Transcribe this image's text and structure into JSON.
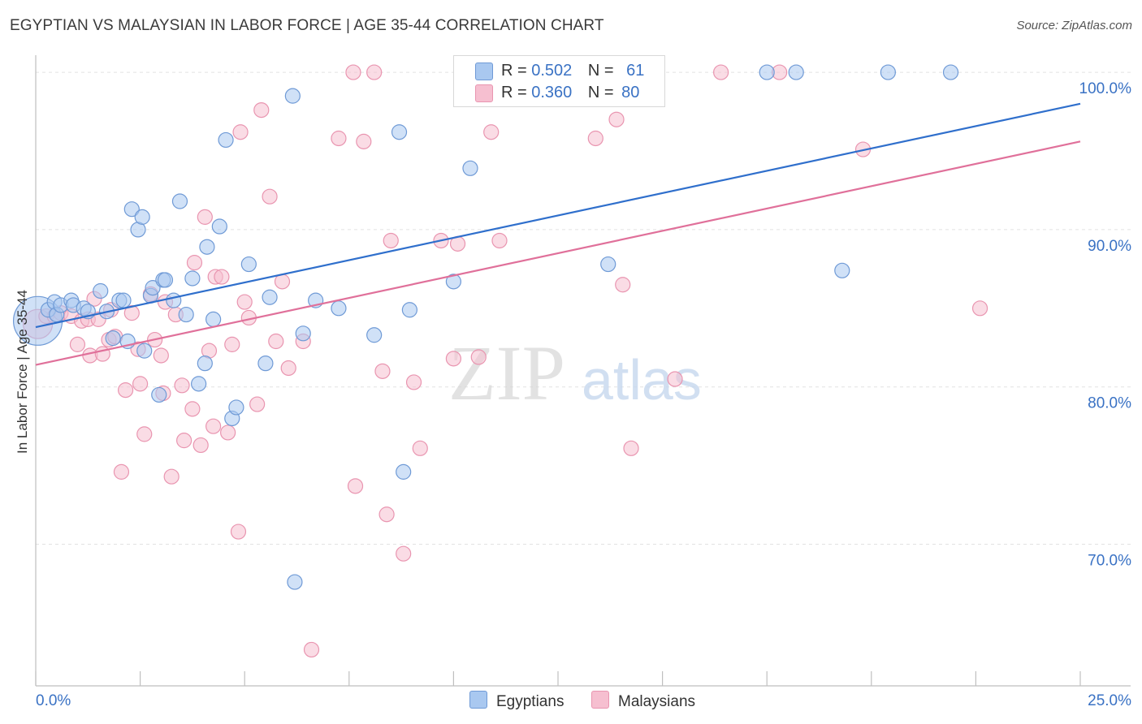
{
  "title": "EGYPTIAN VS MALAYSIAN IN LABOR FORCE | AGE 35-44 CORRELATION CHART",
  "source": "Source: ZipAtlas.com",
  "watermark": {
    "zip": "ZIP",
    "atlas": "atlas"
  },
  "legend": {
    "r_label": "R =",
    "n_label": "N =",
    "rows": [
      {
        "name": "Egyptians",
        "r": "0.502",
        "n": "61"
      },
      {
        "name": "Malaysians",
        "r": "0.360",
        "n": "80"
      }
    ]
  },
  "colors": {
    "egyptians_fill": "#a9c8f0",
    "egyptians_stroke": "#6f9ad6",
    "egyptians_line": "#2f6fcc",
    "malaysians_fill": "#f6bfd0",
    "malaysians_stroke": "#e995b0",
    "malaysians_line": "#e0709a",
    "tick_label": "#3a72c4",
    "grid": "#e2e2e2"
  },
  "chart_data": {
    "type": "scatter",
    "xlabel": "",
    "ylabel": "In Labor Force | Age 35-44",
    "xlim": [
      0,
      25
    ],
    "ylim": [
      61,
      101.5
    ],
    "x_tick_labels": [
      "0.0%",
      "25.0%"
    ],
    "y_ticks": [
      70,
      80,
      90,
      100
    ],
    "y_tick_labels": [
      "70.0%",
      "80.0%",
      "90.0%",
      "100.0%"
    ],
    "grid": true,
    "legend_position": "top-center",
    "series": [
      {
        "name": "Egyptians",
        "trend": {
          "x0": 0,
          "y0": 83.8,
          "x1": 25,
          "y1": 98
        },
        "points": [
          [
            0.05,
            84.2,
            30
          ],
          [
            0.3,
            84.9,
            9
          ],
          [
            0.45,
            85.4,
            9
          ],
          [
            0.5,
            84.6,
            9
          ],
          [
            0.6,
            85.2,
            9
          ],
          [
            0.85,
            85.5,
            9
          ],
          [
            0.9,
            85.2,
            9
          ],
          [
            1.15,
            85.0,
            9
          ],
          [
            1.25,
            84.8,
            9
          ],
          [
            1.55,
            86.1,
            9
          ],
          [
            1.7,
            84.8,
            9
          ],
          [
            1.85,
            83.1,
            9
          ],
          [
            2.0,
            85.5,
            9
          ],
          [
            2.1,
            85.5,
            9
          ],
          [
            2.2,
            82.9,
            9
          ],
          [
            2.3,
            91.3,
            9
          ],
          [
            2.45,
            90.0,
            9
          ],
          [
            2.55,
            90.8,
            9
          ],
          [
            2.6,
            82.3,
            9
          ],
          [
            2.75,
            85.8,
            9
          ],
          [
            2.8,
            86.3,
            9
          ],
          [
            2.95,
            79.5,
            9
          ],
          [
            3.05,
            86.8,
            9
          ],
          [
            3.1,
            86.8,
            9
          ],
          [
            3.3,
            85.5,
            9
          ],
          [
            3.45,
            91.8,
            9
          ],
          [
            3.6,
            84.6,
            9
          ],
          [
            3.75,
            86.9,
            9
          ],
          [
            3.9,
            80.2,
            9
          ],
          [
            4.05,
            81.5,
            9
          ],
          [
            4.1,
            88.9,
            9
          ],
          [
            4.25,
            84.3,
            9
          ],
          [
            4.4,
            90.2,
            9
          ],
          [
            4.55,
            95.7,
            9
          ],
          [
            4.7,
            78.0,
            9
          ],
          [
            4.8,
            78.7,
            9
          ],
          [
            5.1,
            87.8,
            9
          ],
          [
            5.5,
            81.5,
            9
          ],
          [
            5.6,
            85.7,
            9
          ],
          [
            6.15,
            98.5,
            9
          ],
          [
            6.2,
            67.6,
            9
          ],
          [
            6.4,
            83.4,
            9
          ],
          [
            6.7,
            85.5,
            9
          ],
          [
            7.25,
            85.0,
            9
          ],
          [
            8.1,
            83.3,
            9
          ],
          [
            8.7,
            96.2,
            9
          ],
          [
            8.8,
            74.6,
            9
          ],
          [
            8.95,
            84.9,
            9
          ],
          [
            10.0,
            86.7,
            9
          ],
          [
            10.4,
            93.9,
            9
          ],
          [
            13.7,
            87.8,
            9
          ],
          [
            17.5,
            100.0,
            9
          ],
          [
            18.2,
            100.0,
            9
          ],
          [
            19.3,
            87.4,
            9
          ],
          [
            20.4,
            100.0,
            9
          ],
          [
            21.9,
            100.0,
            9
          ]
        ]
      },
      {
        "name": "Malaysians",
        "trend": {
          "x0": 0,
          "y0": 81.4,
          "x1": 25,
          "y1": 95.6
        },
        "points": [
          [
            0.05,
            84.0,
            18
          ],
          [
            0.25,
            84.5,
            9
          ],
          [
            0.45,
            84.5,
            9
          ],
          [
            0.6,
            84.7,
            9
          ],
          [
            0.85,
            84.5,
            9
          ],
          [
            1.0,
            82.7,
            9
          ],
          [
            1.1,
            84.2,
            9
          ],
          [
            1.25,
            84.3,
            9
          ],
          [
            1.3,
            82.0,
            9
          ],
          [
            1.4,
            85.6,
            9
          ],
          [
            1.5,
            84.3,
            9
          ],
          [
            1.6,
            82.1,
            9
          ],
          [
            1.75,
            83.0,
            9
          ],
          [
            1.8,
            84.9,
            9
          ],
          [
            1.9,
            83.2,
            9
          ],
          [
            2.05,
            74.6,
            9
          ],
          [
            2.15,
            79.8,
            9
          ],
          [
            2.3,
            84.7,
            9
          ],
          [
            2.45,
            82.4,
            9
          ],
          [
            2.5,
            80.2,
            9
          ],
          [
            2.6,
            77.0,
            9
          ],
          [
            2.75,
            85.9,
            9
          ],
          [
            2.85,
            83.0,
            9
          ],
          [
            3.0,
            82.0,
            9
          ],
          [
            3.05,
            79.6,
            9
          ],
          [
            3.1,
            85.4,
            9
          ],
          [
            3.25,
            74.3,
            9
          ],
          [
            3.35,
            84.6,
            9
          ],
          [
            3.5,
            80.1,
            9
          ],
          [
            3.55,
            76.6,
            9
          ],
          [
            3.75,
            78.6,
            9
          ],
          [
            3.8,
            87.9,
            9
          ],
          [
            3.95,
            76.3,
            9
          ],
          [
            4.05,
            90.8,
            9
          ],
          [
            4.15,
            82.3,
            9
          ],
          [
            4.25,
            77.5,
            9
          ],
          [
            4.3,
            87.0,
            9
          ],
          [
            4.45,
            87.0,
            9
          ],
          [
            4.6,
            77.1,
            9
          ],
          [
            4.7,
            82.7,
            9
          ],
          [
            4.85,
            70.8,
            9
          ],
          [
            4.9,
            96.2,
            9
          ],
          [
            5.0,
            85.4,
            9
          ],
          [
            5.1,
            84.4,
            9
          ],
          [
            5.3,
            78.9,
            9
          ],
          [
            5.4,
            97.6,
            9
          ],
          [
            5.6,
            92.1,
            9
          ],
          [
            5.75,
            82.9,
            9
          ],
          [
            5.9,
            86.7,
            9
          ],
          [
            6.05,
            81.2,
            9
          ],
          [
            6.4,
            82.9,
            9
          ],
          [
            6.6,
            63.3,
            9
          ],
          [
            7.25,
            95.8,
            9
          ],
          [
            7.6,
            100.0,
            9
          ],
          [
            7.65,
            73.7,
            9
          ],
          [
            7.85,
            95.6,
            9
          ],
          [
            8.1,
            100.0,
            9
          ],
          [
            8.3,
            81.0,
            9
          ],
          [
            8.4,
            71.9,
            9
          ],
          [
            8.5,
            89.3,
            9
          ],
          [
            8.8,
            69.4,
            9
          ],
          [
            9.05,
            80.3,
            9
          ],
          [
            9.2,
            76.1,
            9
          ],
          [
            9.7,
            89.3,
            9
          ],
          [
            10.0,
            81.8,
            9
          ],
          [
            10.1,
            89.1,
            9
          ],
          [
            10.6,
            81.9,
            9
          ],
          [
            10.9,
            96.2,
            9
          ],
          [
            11.1,
            89.3,
            9
          ],
          [
            11.3,
            100.0,
            9
          ],
          [
            13.4,
            95.8,
            9
          ],
          [
            13.7,
            100.0,
            9
          ],
          [
            13.9,
            97.0,
            9
          ],
          [
            14.05,
            86.5,
            9
          ],
          [
            14.25,
            76.1,
            9
          ],
          [
            15.3,
            80.5,
            9
          ],
          [
            16.4,
            100.0,
            9
          ],
          [
            17.8,
            100.0,
            9
          ],
          [
            19.8,
            95.1,
            9
          ],
          [
            22.6,
            85.0,
            9
          ]
        ]
      }
    ]
  }
}
